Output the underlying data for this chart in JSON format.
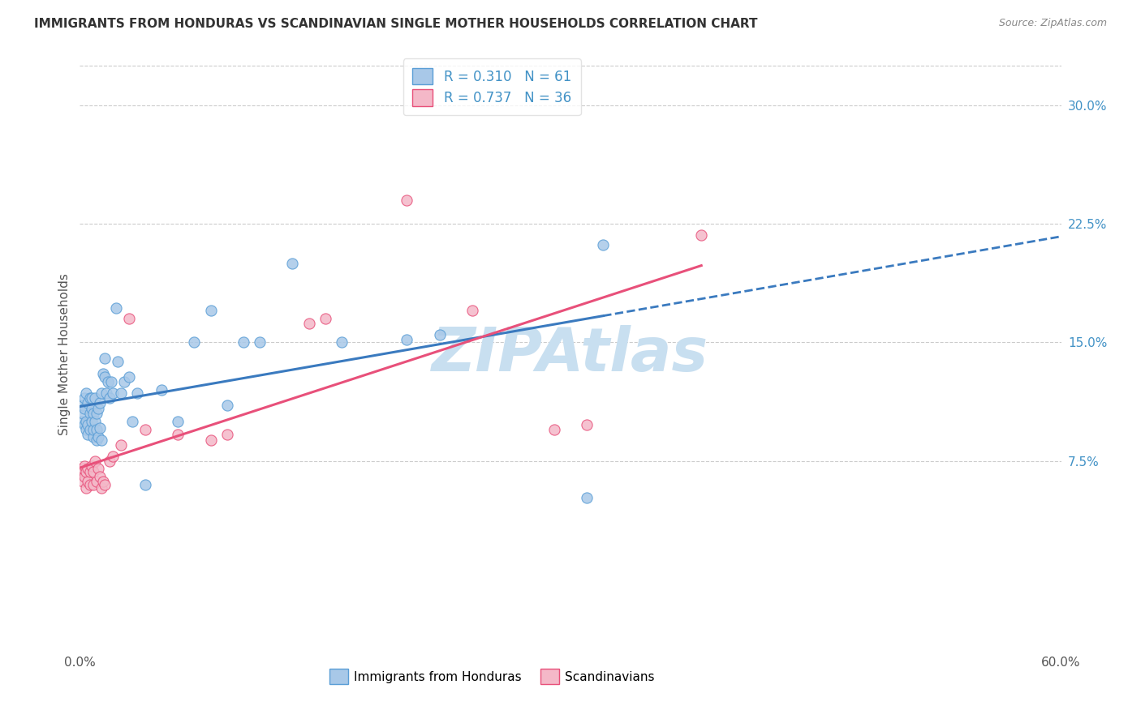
{
  "title": "IMMIGRANTS FROM HONDURAS VS SCANDINAVIAN SINGLE MOTHER HOUSEHOLDS CORRELATION CHART",
  "source": "Source: ZipAtlas.com",
  "ylabel": "Single Mother Households",
  "xlim": [
    0.0,
    0.6
  ],
  "ylim": [
    -0.045,
    0.33
  ],
  "yticks": [
    0.075,
    0.15,
    0.225,
    0.3
  ],
  "ytick_labels": [
    "7.5%",
    "15.0%",
    "22.5%",
    "30.0%"
  ],
  "xticks": [
    0.0,
    0.1,
    0.2,
    0.3,
    0.4,
    0.5,
    0.6
  ],
  "xtick_labels": [
    "0.0%",
    "",
    "",
    "",
    "",
    "",
    "60.0%"
  ],
  "blue_scatter_color": "#a8c8e8",
  "pink_scatter_color": "#f4b8c8",
  "blue_line_color": "#3a7abf",
  "pink_line_color": "#e8507a",
  "blue_edge_color": "#5a9ed6",
  "pink_edge_color": "#e8507a",
  "axis_color": "#4292c6",
  "watermark": "ZIPAtlas",
  "watermark_color": "#c8dff0",
  "legend_R_blue": "0.310",
  "legend_N_blue": "61",
  "legend_R_pink": "0.737",
  "legend_N_pink": "36",
  "blue_points_x": [
    0.001,
    0.002,
    0.002,
    0.003,
    0.003,
    0.003,
    0.004,
    0.004,
    0.004,
    0.005,
    0.005,
    0.005,
    0.006,
    0.006,
    0.006,
    0.007,
    0.007,
    0.007,
    0.008,
    0.008,
    0.008,
    0.009,
    0.009,
    0.01,
    0.01,
    0.01,
    0.011,
    0.011,
    0.012,
    0.012,
    0.013,
    0.013,
    0.014,
    0.015,
    0.015,
    0.016,
    0.017,
    0.018,
    0.019,
    0.02,
    0.022,
    0.023,
    0.025,
    0.027,
    0.03,
    0.032,
    0.035,
    0.04,
    0.05,
    0.06,
    0.07,
    0.08,
    0.09,
    0.1,
    0.11,
    0.13,
    0.16,
    0.2,
    0.22,
    0.31,
    0.32
  ],
  "blue_points_y": [
    0.1,
    0.105,
    0.11,
    0.098,
    0.108,
    0.115,
    0.095,
    0.1,
    0.118,
    0.092,
    0.098,
    0.112,
    0.095,
    0.105,
    0.115,
    0.1,
    0.108,
    0.115,
    0.09,
    0.095,
    0.105,
    0.1,
    0.115,
    0.088,
    0.095,
    0.105,
    0.09,
    0.108,
    0.096,
    0.112,
    0.088,
    0.118,
    0.13,
    0.128,
    0.14,
    0.118,
    0.125,
    0.115,
    0.125,
    0.118,
    0.172,
    0.138,
    0.118,
    0.125,
    0.128,
    0.1,
    0.118,
    0.06,
    0.12,
    0.1,
    0.15,
    0.17,
    0.11,
    0.15,
    0.15,
    0.2,
    0.15,
    0.152,
    0.155,
    0.052,
    0.212
  ],
  "pink_points_x": [
    0.001,
    0.002,
    0.002,
    0.003,
    0.003,
    0.004,
    0.004,
    0.005,
    0.005,
    0.006,
    0.006,
    0.007,
    0.008,
    0.008,
    0.009,
    0.01,
    0.011,
    0.012,
    0.013,
    0.014,
    0.015,
    0.018,
    0.02,
    0.025,
    0.03,
    0.04,
    0.06,
    0.08,
    0.09,
    0.14,
    0.15,
    0.2,
    0.24,
    0.29,
    0.31,
    0.38
  ],
  "pink_points_y": [
    0.068,
    0.062,
    0.07,
    0.065,
    0.072,
    0.058,
    0.068,
    0.062,
    0.07,
    0.06,
    0.068,
    0.072,
    0.06,
    0.068,
    0.075,
    0.062,
    0.07,
    0.065,
    0.058,
    0.062,
    0.06,
    0.075,
    0.078,
    0.085,
    0.165,
    0.095,
    0.092,
    0.088,
    0.092,
    0.162,
    0.165,
    0.24,
    0.17,
    0.095,
    0.098,
    0.218
  ]
}
